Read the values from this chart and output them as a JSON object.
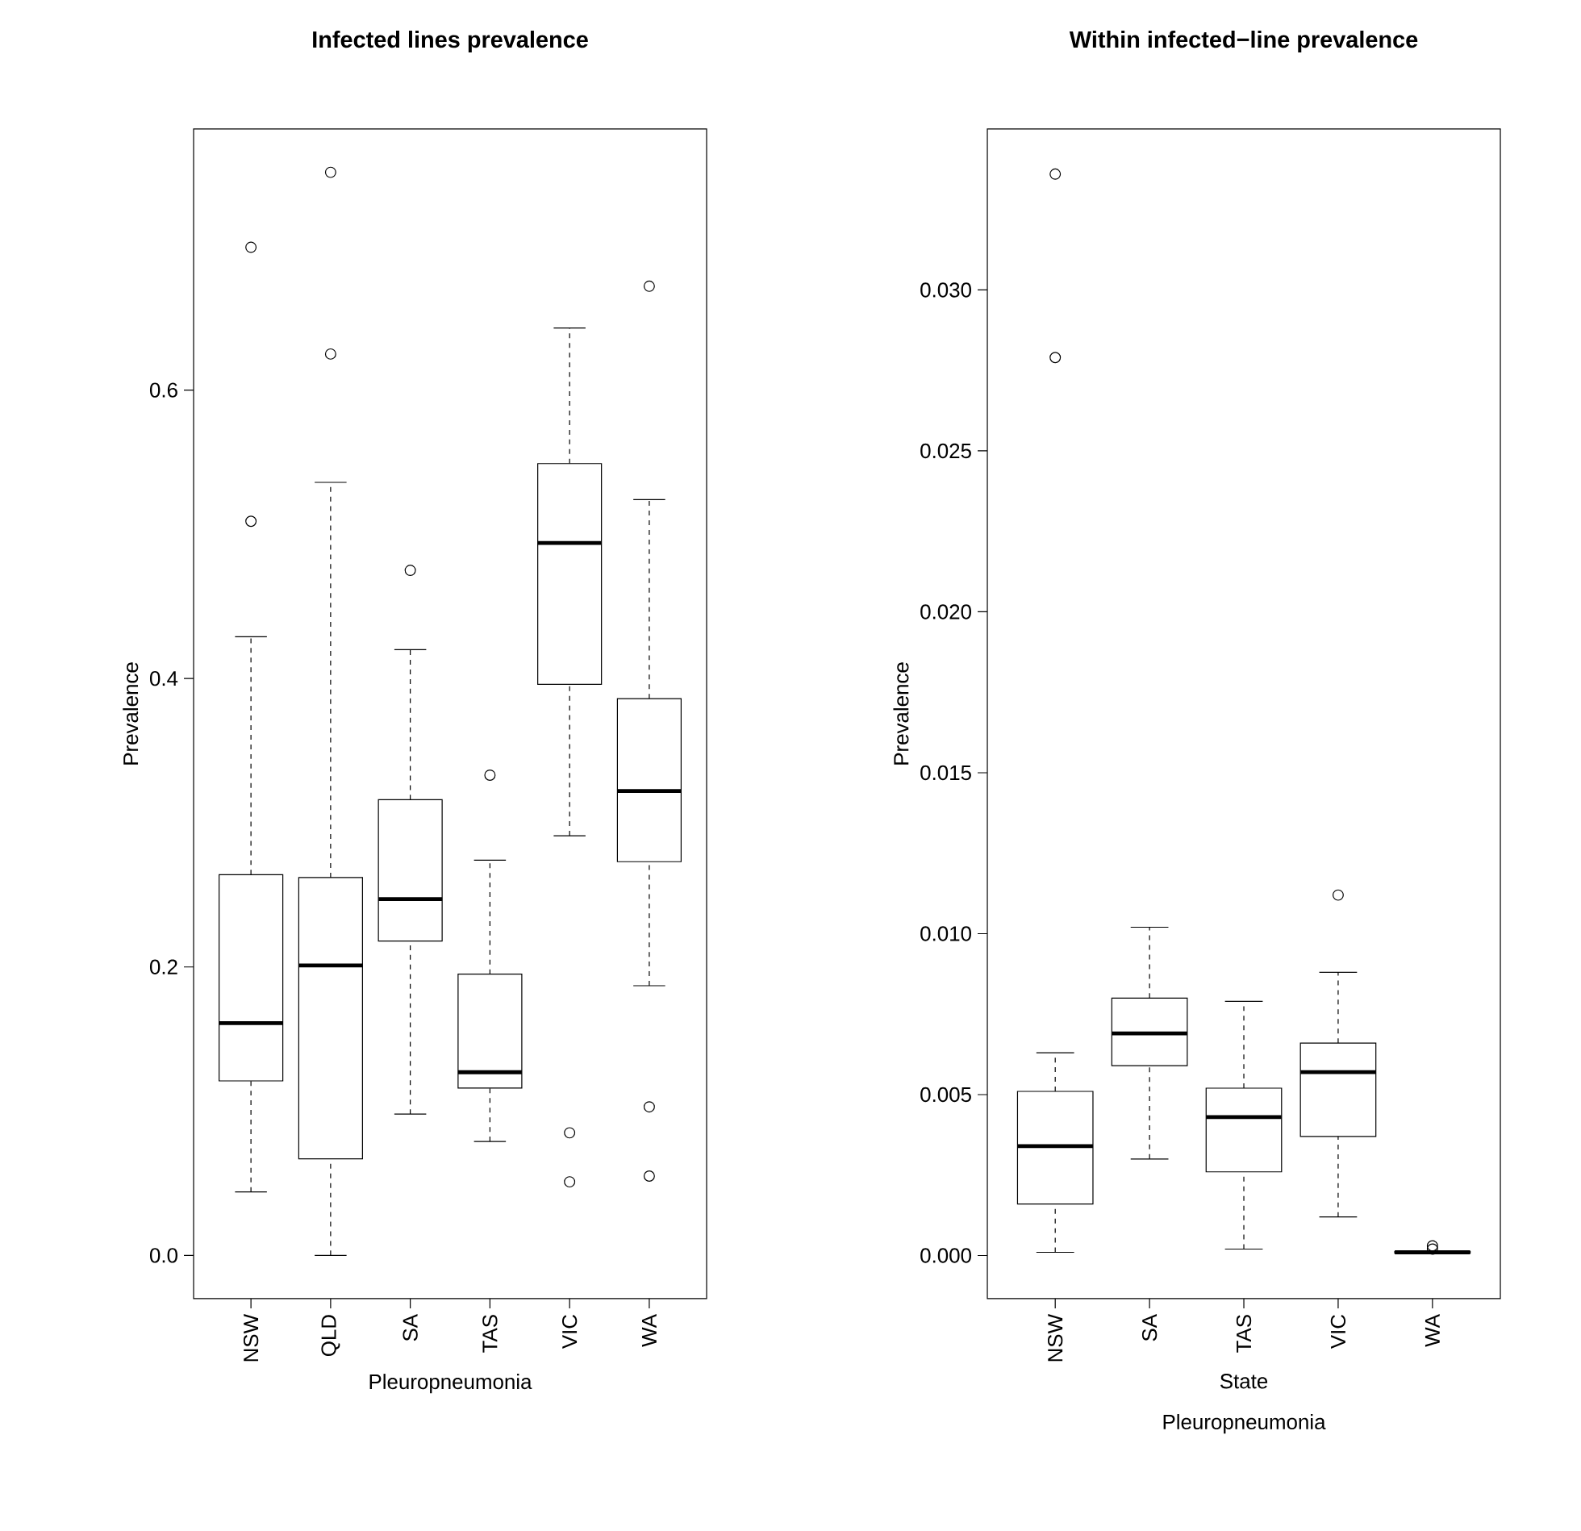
{
  "chart_data": [
    {
      "type": "box",
      "title": "Infected lines prevalence",
      "xlabel": "Pleuropneumonia",
      "ylabel": "Prevalence",
      "categories": [
        "NSW",
        "QLD",
        "SA",
        "TAS",
        "VIC",
        "WA"
      ],
      "boxes": [
        {
          "low": 0.044,
          "q1": 0.121,
          "median": 0.161,
          "q3": 0.264,
          "high": 0.429,
          "outliers": [
            0.509,
            0.699
          ]
        },
        {
          "low": 0.0,
          "q1": 0.067,
          "median": 0.201,
          "q3": 0.262,
          "high": 0.536,
          "outliers": [
            0.625,
            0.751
          ]
        },
        {
          "low": 0.098,
          "q1": 0.218,
          "median": 0.247,
          "q3": 0.316,
          "high": 0.42,
          "outliers": [
            0.475
          ]
        },
        {
          "low": 0.079,
          "q1": 0.116,
          "median": 0.127,
          "q3": 0.195,
          "high": 0.274,
          "outliers": [
            0.333
          ]
        },
        {
          "low": 0.291,
          "q1": 0.396,
          "median": 0.494,
          "q3": 0.549,
          "high": 0.643,
          "outliers": [
            0.085,
            0.051
          ]
        },
        {
          "low": 0.187,
          "q1": 0.273,
          "median": 0.322,
          "q3": 0.386,
          "high": 0.524,
          "outliers": [
            0.672,
            0.103,
            0.055
          ]
        }
      ],
      "ylim": [
        -0.03,
        0.781
      ],
      "yticks": [
        {
          "value": 0,
          "label": "0.0"
        },
        {
          "value": 0.2,
          "label": "0.2"
        },
        {
          "value": 0.4,
          "label": "0.4"
        },
        {
          "value": 0.6,
          "label": "0.6"
        }
      ],
      "grid": false
    },
    {
      "type": "box",
      "title": "Within infected−line prevalence",
      "xlabel": "State",
      "ylabel": "Prevalence",
      "annotations": [
        "Pleuropneumonia"
      ],
      "categories": [
        "NSW",
        "SA",
        "TAS",
        "VIC",
        "WA"
      ],
      "boxes": [
        {
          "low": 0.0001,
          "q1": 0.0016,
          "median": 0.0034,
          "q3": 0.0051,
          "high": 0.0063,
          "outliers": [
            0.0279,
            0.0336
          ]
        },
        {
          "low": 0.003,
          "q1": 0.0059,
          "median": 0.0069,
          "q3": 0.008,
          "high": 0.0102
        },
        {
          "low": 0.0002,
          "q1": 0.0026,
          "median": 0.0043,
          "q3": 0.0052,
          "high": 0.0079
        },
        {
          "low": 0.0012,
          "q1": 0.0037,
          "median": 0.0057,
          "q3": 0.0066,
          "high": 0.0088,
          "outliers": [
            0.0112
          ]
        },
        {
          "low": 5e-05,
          "q1": 8e-05,
          "median": 0.0001,
          "q3": 0.00012,
          "high": 0.00015,
          "outliers": [
            0.0003,
            0.0002
          ]
        }
      ],
      "ylim": [
        -0.00134,
        0.035
      ],
      "yticks": [
        {
          "value": 0,
          "label": "0.000"
        },
        {
          "value": 0.005,
          "label": "0.005"
        },
        {
          "value": 0.01,
          "label": "0.010"
        },
        {
          "value": 0.015,
          "label": "0.015"
        },
        {
          "value": 0.02,
          "label": "0.020"
        },
        {
          "value": 0.025,
          "label": "0.025"
        },
        {
          "value": 0.03,
          "label": "0.030"
        }
      ],
      "grid": false
    }
  ]
}
